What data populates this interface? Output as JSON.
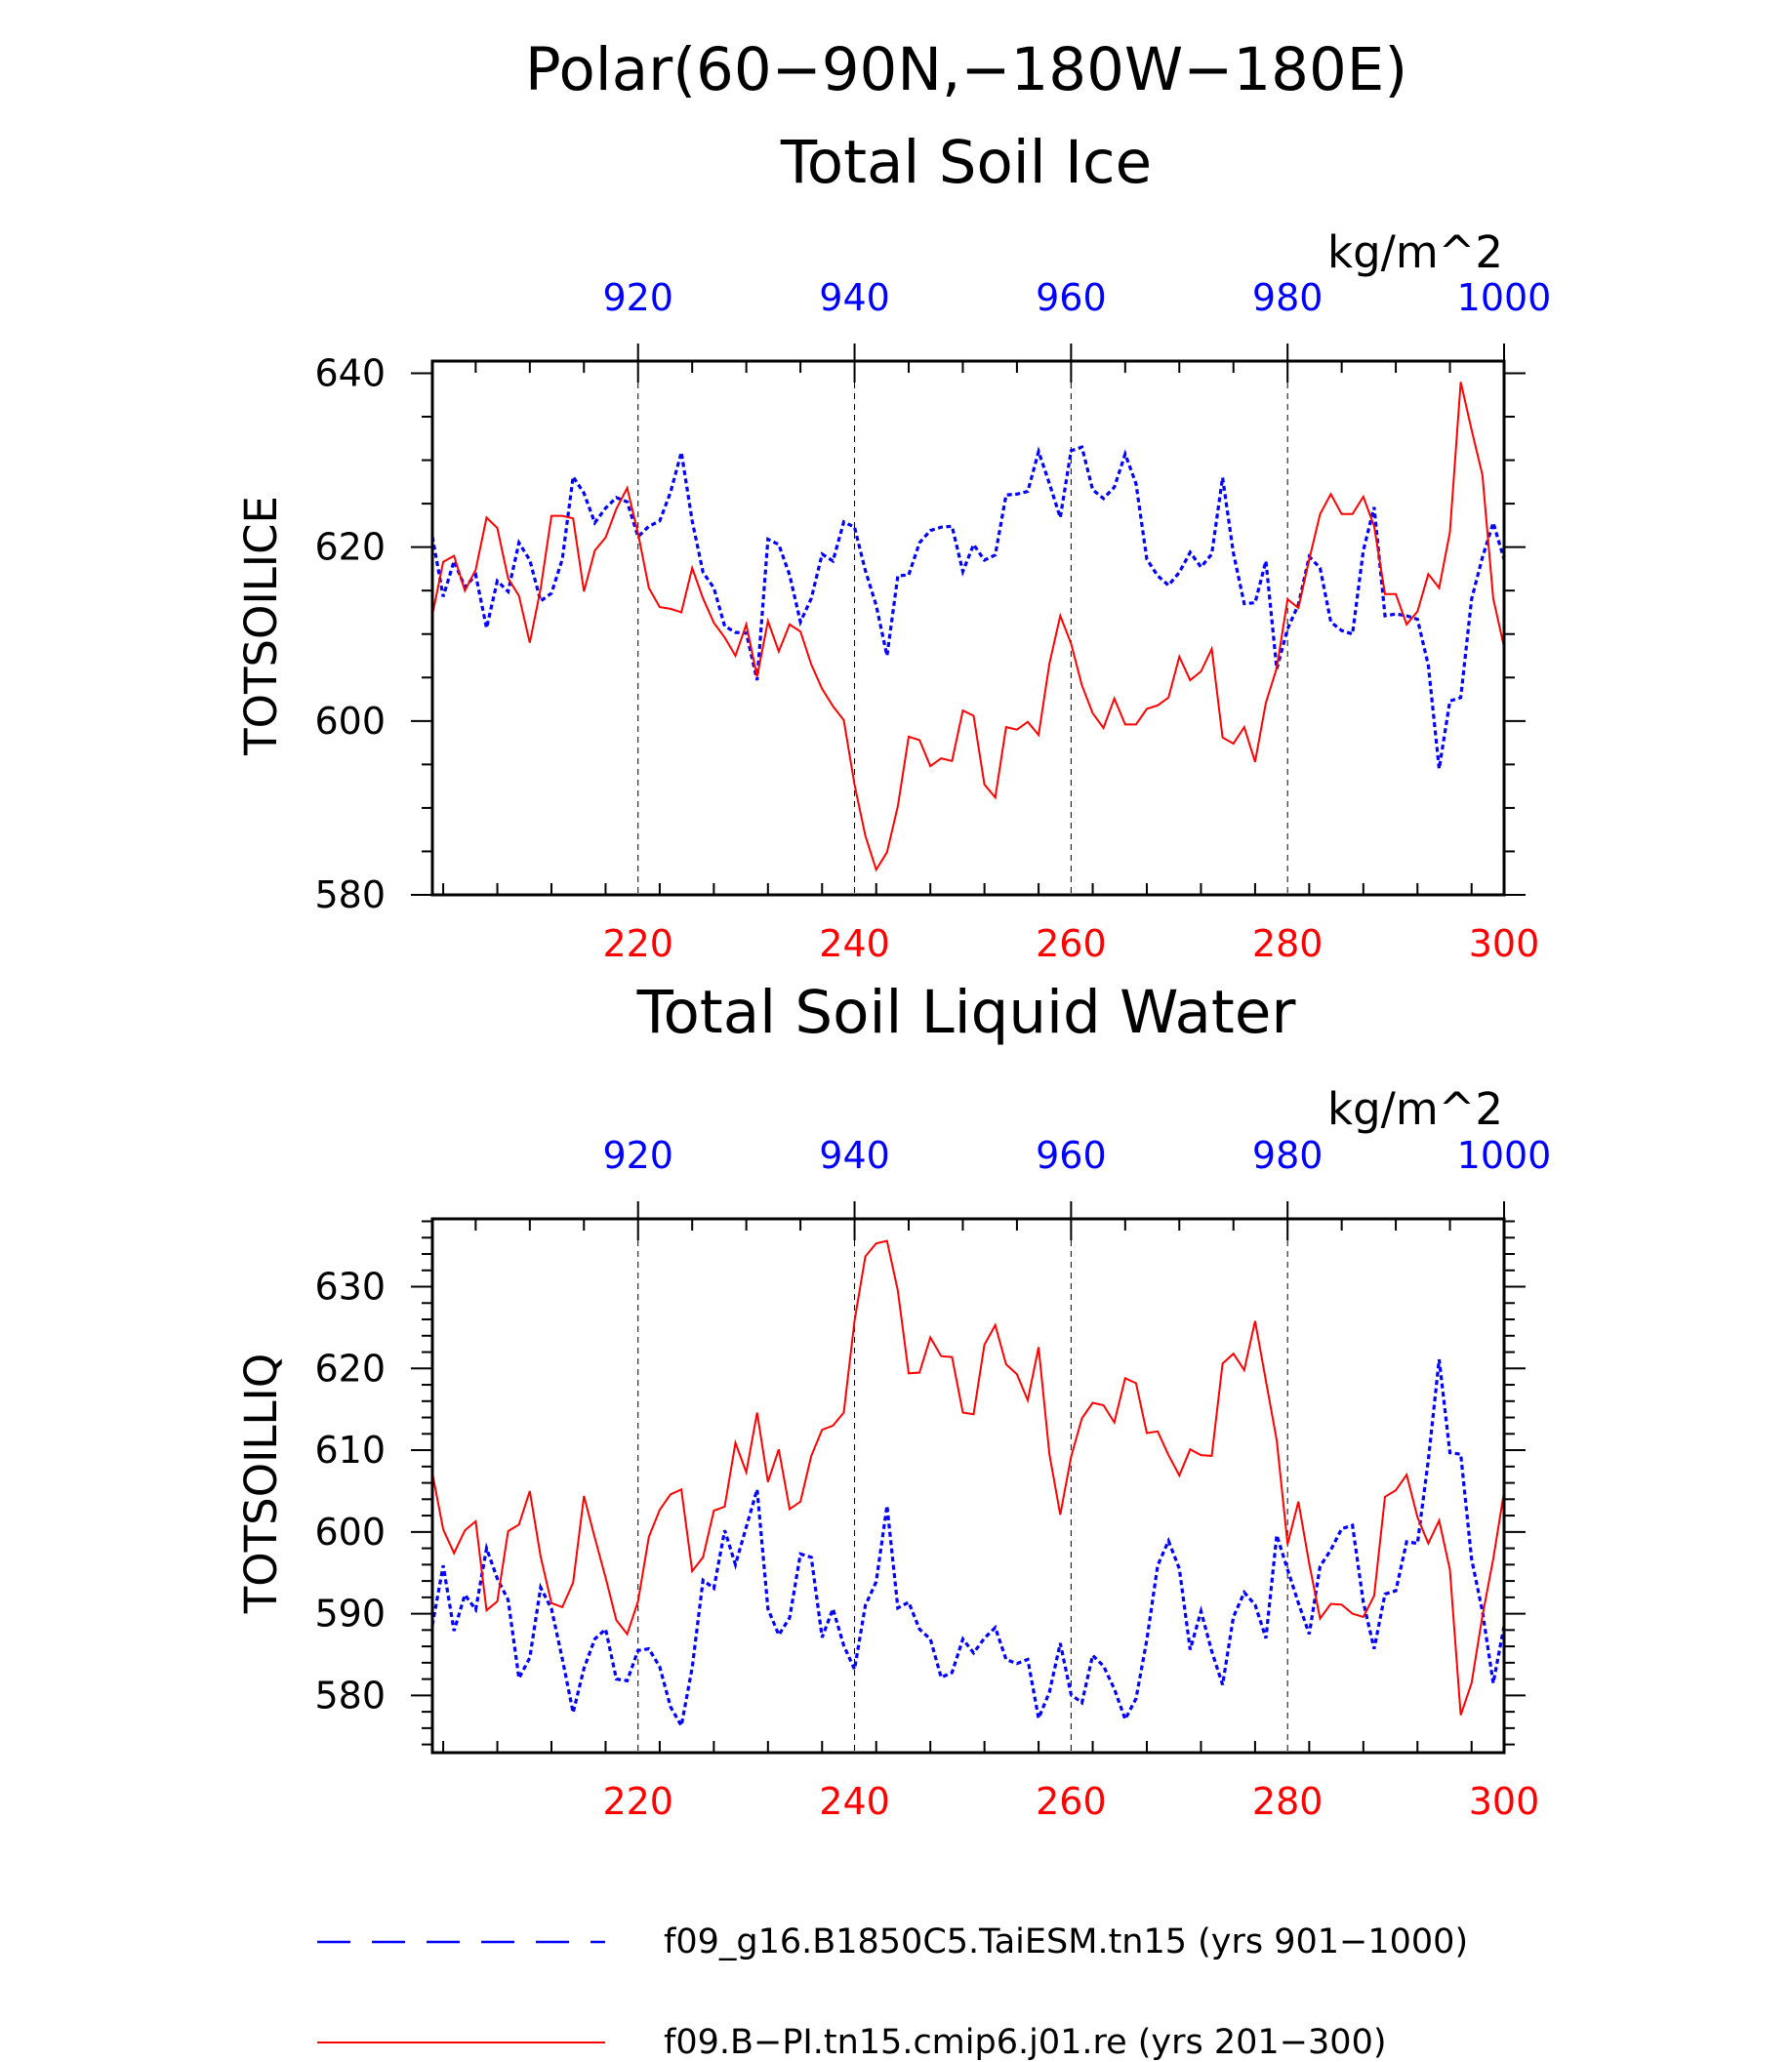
{
  "figure": {
    "title_line1": "Polar(60−90N,−180W−180E)",
    "colors": {
      "series_a": "#0000ff",
      "series_b": "#ff0000",
      "axis": "#000000"
    }
  },
  "legend": {
    "entries": [
      {
        "label": "f09_g16.B1850C5.TaiESM.tn15 (yrs 901−1000)",
        "color": "#0000ff",
        "style": "dashed"
      },
      {
        "label": "f09.B−PI.tn15.cmip6.j01.re (yrs 201−300)",
        "color": "#ff0000",
        "style": "solid"
      }
    ]
  },
  "chart_data": [
    {
      "type": "line",
      "title": "Total Soil Ice",
      "ylabel": "TOTSOILICE",
      "units": "kg/m^2",
      "ylim": [
        580,
        641.4
      ],
      "yticks": [
        580,
        600,
        620,
        640
      ],
      "top_axis": {
        "lim": [
          901,
          1000
        ],
        "ticks": [
          920,
          940,
          960,
          980,
          1000
        ]
      },
      "bottom_axis": {
        "lim": [
          201,
          300
        ],
        "ticks": [
          220,
          240,
          260,
          280,
          300
        ]
      },
      "grid": "dashed vertical at major ticks",
      "series": [
        {
          "axis": "top",
          "x_start": 901,
          "values": [
            621.2,
            614.3,
            618.4,
            615.4,
            616.8,
            610.7,
            616.1,
            614.9,
            620.5,
            618.5,
            613.8,
            614.7,
            618.6,
            628.1,
            626.2,
            622.8,
            624.5,
            625.7,
            625.2,
            621.2,
            622.4,
            623.0,
            626.3,
            630.9,
            623.0,
            617.1,
            615.3,
            610.9,
            610.2,
            610.1,
            604.7,
            620.9,
            620.3,
            616.8,
            611.4,
            614.1,
            619.2,
            618.4,
            622.9,
            622.3,
            617.3,
            613.3,
            607.5,
            616.7,
            616.8,
            620.5,
            621.9,
            622.3,
            622.4,
            617.2,
            620.3,
            618.5,
            619.1,
            626.0,
            626.1,
            626.4,
            631.0,
            627.3,
            623.4,
            631.1,
            631.5,
            626.6,
            625.6,
            626.9,
            630.7,
            627.3,
            618.6,
            616.7,
            615.6,
            617.1,
            619.4,
            617.7,
            619.2,
            628.0,
            619.3,
            613.5,
            613.6,
            618.4,
            606.0,
            610.6,
            613.4,
            618.9,
            617.6,
            611.4,
            610.4,
            610.0,
            619.6,
            624.6,
            612.1,
            612.3,
            612.1,
            611.7,
            606.4,
            594.5,
            602.3,
            602.7,
            614.0,
            618.8,
            622.8,
            618.6
          ]
        },
        {
          "axis": "bottom",
          "x_start": 201,
          "values": [
            612.2,
            618.3,
            619.0,
            615.0,
            617.4,
            623.4,
            622.2,
            616.4,
            614.4,
            609.0,
            615.2,
            623.6,
            623.6,
            623.3,
            614.9,
            619.6,
            621.1,
            624.4,
            626.8,
            621.6,
            615.3,
            613.1,
            612.9,
            612.5,
            617.6,
            614.1,
            611.3,
            609.6,
            607.5,
            611.1,
            605.1,
            611.5,
            608.0,
            611.1,
            610.3,
            606.5,
            603.7,
            601.7,
            600.1,
            592.7,
            586.8,
            582.9,
            584.9,
            590.2,
            598.2,
            597.8,
            594.8,
            595.7,
            595.4,
            601.2,
            600.6,
            592.7,
            591.2,
            599.3,
            599.0,
            599.9,
            598.4,
            606.6,
            612.1,
            608.9,
            604.1,
            600.9,
            599.2,
            602.6,
            599.6,
            599.6,
            601.4,
            601.8,
            602.7,
            607.4,
            604.7,
            605.7,
            608.3,
            598.1,
            597.4,
            599.3,
            595.3,
            602.1,
            606.1,
            614.0,
            613.0,
            618.6,
            623.8,
            626.1,
            623.8,
            623.8,
            625.8,
            622.4,
            614.6,
            614.6,
            611.1,
            612.6,
            616.9,
            615.3,
            621.7,
            639.0,
            633.5,
            628.3,
            614.1,
            608.5
          ]
        }
      ]
    },
    {
      "type": "line",
      "title": "Total Soil Liquid Water",
      "ylabel": "TOTSOILLIQ",
      "units": "kg/m^2",
      "ylim": [
        573,
        638.3
      ],
      "yticks": [
        580,
        590,
        600,
        610,
        620,
        630
      ],
      "top_axis": {
        "lim": [
          901,
          1000
        ],
        "ticks": [
          920,
          940,
          960,
          980,
          1000
        ]
      },
      "bottom_axis": {
        "lim": [
          201,
          300
        ],
        "ticks": [
          220,
          240,
          260,
          280,
          300
        ]
      },
      "grid": "dashed vertical at major ticks",
      "series": [
        {
          "axis": "top",
          "x_start": 901,
          "values": [
            588.6,
            595.9,
            587.9,
            592.3,
            590.5,
            598.0,
            594.3,
            591.7,
            582.1,
            584.6,
            593.2,
            590.6,
            584.5,
            577.9,
            583.3,
            586.9,
            588.1,
            582.0,
            581.8,
            585.5,
            585.7,
            583.5,
            578.6,
            576.3,
            583.4,
            594.1,
            593.1,
            600.2,
            596.0,
            600.6,
            605.2,
            590.6,
            587.4,
            589.5,
            597.3,
            596.9,
            587.1,
            590.6,
            586.1,
            583.2,
            591.0,
            593.9,
            603.2,
            590.7,
            591.4,
            588.1,
            586.9,
            582.2,
            582.8,
            586.9,
            585.2,
            587.0,
            588.3,
            584.4,
            583.9,
            584.4,
            577.2,
            580.4,
            586.4,
            580.1,
            579.1,
            584.9,
            583.6,
            580.8,
            577.1,
            579.6,
            586.8,
            595.9,
            598.9,
            595.5,
            585.6,
            590.3,
            585.4,
            581.3,
            589.6,
            592.6,
            591.1,
            587.0,
            599.6,
            595.4,
            591.3,
            587.5,
            595.8,
            597.8,
            600.4,
            600.8,
            591.4,
            585.7,
            592.4,
            592.8,
            598.8,
            598.6,
            608.8,
            621.1,
            609.7,
            609.5,
            596.7,
            590.3,
            581.5,
            588.5
          ]
        },
        {
          "axis": "bottom",
          "x_start": 201,
          "values": [
            607.2,
            600.3,
            597.4,
            600.2,
            601.3,
            590.4,
            591.5,
            600.1,
            600.9,
            605.0,
            597.0,
            591.3,
            590.8,
            593.8,
            604.4,
            599.3,
            594.4,
            589.2,
            587.5,
            591.5,
            599.4,
            602.7,
            604.6,
            605.2,
            595.2,
            596.9,
            602.6,
            603.1,
            610.9,
            607.3,
            614.6,
            606.1,
            610.1,
            602.8,
            603.7,
            609.3,
            612.5,
            613.0,
            614.6,
            625.8,
            633.7,
            635.3,
            635.6,
            629.5,
            619.4,
            619.5,
            623.8,
            621.5,
            621.4,
            614.6,
            614.4,
            622.9,
            625.3,
            620.5,
            619.3,
            616.1,
            622.6,
            609.5,
            602.1,
            609.2,
            613.9,
            615.8,
            615.5,
            613.4,
            618.8,
            618.2,
            612.1,
            612.3,
            609.4,
            606.9,
            610.1,
            609.4,
            609.3,
            620.6,
            621.8,
            619.8,
            625.8,
            618.5,
            611.2,
            598.5,
            603.7,
            596.1,
            589.4,
            591.2,
            591.1,
            590.0,
            589.6,
            592.2,
            604.3,
            605.1,
            607.0,
            601.8,
            598.6,
            601.4,
            595.4,
            577.6,
            581.5,
            589.7,
            596.7,
            604.9
          ]
        }
      ]
    }
  ]
}
